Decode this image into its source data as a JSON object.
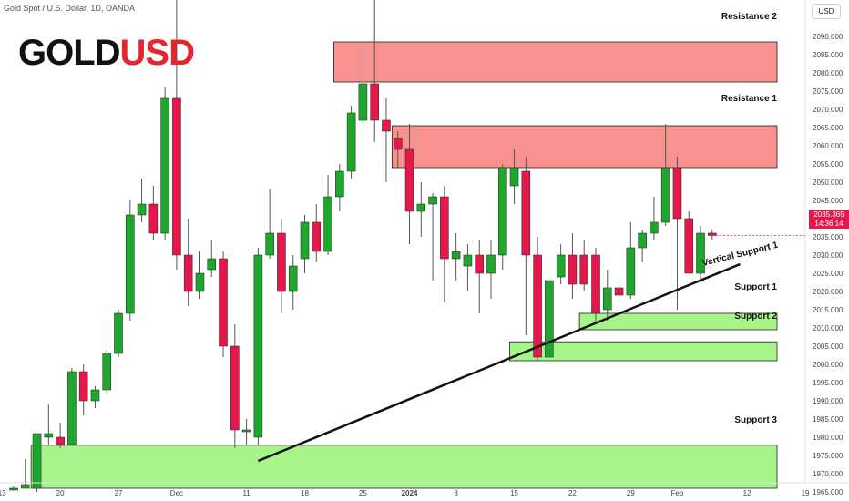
{
  "header": {
    "symbol_line": "Gold Spot / U.S. Dollar, 1D, OANDA"
  },
  "logo": {
    "part1": "GOLD",
    "part2": "USD"
  },
  "axis": {
    "currency": "USD"
  },
  "price_marker": {
    "price": "2035.365",
    "countdown": "14:36:14"
  },
  "chart_data": {
    "type": "candlestick",
    "y_ticks": [
      1965,
      1970,
      1975,
      1980,
      1985,
      1990,
      1995,
      2000,
      2005,
      2010,
      2015,
      2020,
      2025,
      2030,
      2035,
      2040,
      2045,
      2050,
      2055,
      2060,
      2065,
      2070,
      2075,
      2080,
      2085,
      2090
    ],
    "y_tick_labels": [
      "1965.000",
      "1970.000",
      "1975.000",
      "1980.000",
      "1985.000",
      "1990.000",
      "1995.000",
      "2000.000",
      "2005.000",
      "2010.000",
      "2015.000",
      "2020.000",
      "2025.000",
      "2030.000",
      "2035.000",
      "2040.000",
      "2045.000",
      "2050.000",
      "2055.000",
      "2060.000",
      "2065.000",
      "2070.000",
      "2075.000",
      "2080.000",
      "2085.000",
      "2090.000"
    ],
    "x_labels": [
      {
        "label": "13",
        "i": -1
      },
      {
        "label": "20",
        "i": 4
      },
      {
        "label": "27",
        "i": 9
      },
      {
        "label": "Dec",
        "i": 14
      },
      {
        "label": "11",
        "i": 20
      },
      {
        "label": "18",
        "i": 25
      },
      {
        "label": "25",
        "i": 30
      },
      {
        "label": "2024",
        "i": 34
      },
      {
        "label": "8",
        "i": 38
      },
      {
        "label": "15",
        "i": 43
      },
      {
        "label": "22",
        "i": 48
      },
      {
        "label": "29",
        "i": 53
      },
      {
        "label": "Feb",
        "i": 57
      },
      {
        "label": "12",
        "i": 63
      },
      {
        "label": "19",
        "i": 68
      }
    ],
    "candles": [
      {
        "o": 1966,
        "h": 1966.5,
        "l": 1965.5,
        "c": 1966
      },
      {
        "o": 1966,
        "h": 1974,
        "l": 1966,
        "c": 1967
      },
      {
        "o": 1966,
        "h": 1981,
        "l": 1965,
        "c": 1981
      },
      {
        "o": 1980,
        "h": 1989,
        "l": 1978,
        "c": 1981
      },
      {
        "o": 1980,
        "h": 1984,
        "l": 1977,
        "c": 1978
      },
      {
        "o": 1978,
        "h": 1999,
        "l": 1978,
        "c": 1998
      },
      {
        "o": 1998,
        "h": 2000,
        "l": 1986,
        "c": 1990
      },
      {
        "o": 1990,
        "h": 1994,
        "l": 1988,
        "c": 1993
      },
      {
        "o": 1993,
        "h": 2004,
        "l": 1992,
        "c": 2003
      },
      {
        "o": 2003,
        "h": 2015,
        "l": 2002,
        "c": 2014
      },
      {
        "o": 2014,
        "h": 2045,
        "l": 2012,
        "c": 2041
      },
      {
        "o": 2041,
        "h": 2051,
        "l": 2039,
        "c": 2044
      },
      {
        "o": 2044,
        "h": 2049,
        "l": 2034,
        "c": 2036
      },
      {
        "o": 2036,
        "h": 2076,
        "l": 2034,
        "c": 2073
      },
      {
        "o": 2073,
        "h": 2145,
        "l": 2026,
        "c": 2030
      },
      {
        "o": 2030,
        "h": 2040,
        "l": 2016,
        "c": 2020
      },
      {
        "o": 2020,
        "h": 2031,
        "l": 2018,
        "c": 2025
      },
      {
        "o": 2026,
        "h": 2034,
        "l": 2024,
        "c": 2029
      },
      {
        "o": 2029,
        "h": 2031,
        "l": 2002,
        "c": 2005
      },
      {
        "o": 2005,
        "h": 2011,
        "l": 1977,
        "c": 1982
      },
      {
        "o": 1982,
        "h": 1985,
        "l": 1978,
        "c": 1982
      },
      {
        "o": 1980,
        "h": 2032,
        "l": 1978,
        "c": 2030
      },
      {
        "o": 2030,
        "h": 2048,
        "l": 2029,
        "c": 2036
      },
      {
        "o": 2036,
        "h": 2040,
        "l": 2014,
        "c": 2020
      },
      {
        "o": 2020,
        "h": 2030,
        "l": 2015,
        "c": 2027
      },
      {
        "o": 2029,
        "h": 2041,
        "l": 2025,
        "c": 2039
      },
      {
        "o": 2039,
        "h": 2044,
        "l": 2028,
        "c": 2031
      },
      {
        "o": 2031,
        "h": 2052,
        "l": 2030,
        "c": 2046
      },
      {
        "o": 2046,
        "h": 2055,
        "l": 2042,
        "c": 2053
      },
      {
        "o": 2053,
        "h": 2071,
        "l": 2051,
        "c": 2069
      },
      {
        "o": 2067,
        "h": 2088,
        "l": 2066,
        "c": 2077
      },
      {
        "o": 2077,
        "h": 2145,
        "l": 2061,
        "c": 2067
      },
      {
        "o": 2067,
        "h": 2073,
        "l": 2050,
        "c": 2064
      },
      {
        "o": 2062,
        "h": 2064,
        "l": 2054,
        "c": 2059
      },
      {
        "o": 2059,
        "h": 2066,
        "l": 2033,
        "c": 2042
      },
      {
        "o": 2042,
        "h": 2050,
        "l": 2035,
        "c": 2044
      },
      {
        "o": 2044,
        "h": 2047,
        "l": 2023,
        "c": 2046
      },
      {
        "o": 2046,
        "h": 2049,
        "l": 2017,
        "c": 2029
      },
      {
        "o": 2029,
        "h": 2036,
        "l": 2023,
        "c": 2031
      },
      {
        "o": 2027,
        "h": 2033,
        "l": 2020,
        "c": 2030
      },
      {
        "o": 2030,
        "h": 2034,
        "l": 2014,
        "c": 2025
      },
      {
        "o": 2025,
        "h": 2034,
        "l": 2018,
        "c": 2030
      },
      {
        "o": 2030,
        "h": 2055,
        "l": 2026,
        "c": 2054
      },
      {
        "o": 2049,
        "h": 2059,
        "l": 2044,
        "c": 2054
      },
      {
        "o": 2053,
        "h": 2057,
        "l": 2008,
        "c": 2030
      },
      {
        "o": 2030,
        "h": 2035,
        "l": 2001,
        "c": 2002
      },
      {
        "o": 2002,
        "h": 2023,
        "l": 2002,
        "c": 2023
      },
      {
        "o": 2024,
        "h": 2033,
        "l": 2022,
        "c": 2030
      },
      {
        "o": 2030,
        "h": 2036,
        "l": 2018,
        "c": 2022
      },
      {
        "o": 2030,
        "h": 2034,
        "l": 2020,
        "c": 2022
      },
      {
        "o": 2030,
        "h": 2032,
        "l": 2011,
        "c": 2014
      },
      {
        "o": 2015,
        "h": 2026,
        "l": 2012,
        "c": 2021
      },
      {
        "o": 2021,
        "h": 2024,
        "l": 2018,
        "c": 2019
      },
      {
        "o": 2019,
        "h": 2039,
        "l": 2018,
        "c": 2032
      },
      {
        "o": 2032,
        "h": 2037,
        "l": 2028,
        "c": 2036
      },
      {
        "o": 2036,
        "h": 2046,
        "l": 2034,
        "c": 2039
      },
      {
        "o": 2039,
        "h": 2066,
        "l": 2038,
        "c": 2054
      },
      {
        "o": 2054,
        "h": 2057,
        "l": 2015,
        "c": 2040
      },
      {
        "o": 2040,
        "h": 2042,
        "l": 2025,
        "c": 2025
      },
      {
        "o": 2025,
        "h": 2038,
        "l": 2023,
        "c": 2036
      },
      {
        "o": 2036,
        "h": 2037,
        "l": 2034,
        "c": 2035.4
      }
    ],
    "zones": [
      {
        "label": "Resistance 2",
        "from": -0.5,
        "to": 9999,
        "lo": 2077.5,
        "hi": 2088.5,
        "start": 27.5,
        "color": "#f8928f"
      },
      {
        "label": "Resistance 1",
        "from": 0,
        "to": 0,
        "lo": 2054,
        "hi": 2065.5,
        "start": 32.5,
        "color": "#f8928f"
      },
      {
        "label": "Support 1",
        "from": 0,
        "to": 0,
        "lo": 2009.5,
        "hi": 2014,
        "start": 48.6,
        "color": "#a7f58a"
      },
      {
        "label": "Support 2",
        "from": 0,
        "to": 0,
        "lo": 2001,
        "hi": 2006.2,
        "start": 42.6,
        "color": "#a7f58a"
      },
      {
        "label": "Support 3",
        "from": 0,
        "to": 0,
        "lo": 1966,
        "hi": 1977.8,
        "start": 1.5,
        "color": "#a7f58a"
      }
    ],
    "trendline": {
      "label": "Vertical Support 1",
      "x1": 21,
      "y1": 1973.5,
      "x2": 62.4,
      "y2": 2027.5
    },
    "colors": {
      "up": "#1fa72d",
      "down": "#e5174b",
      "line": "#111111"
    }
  }
}
